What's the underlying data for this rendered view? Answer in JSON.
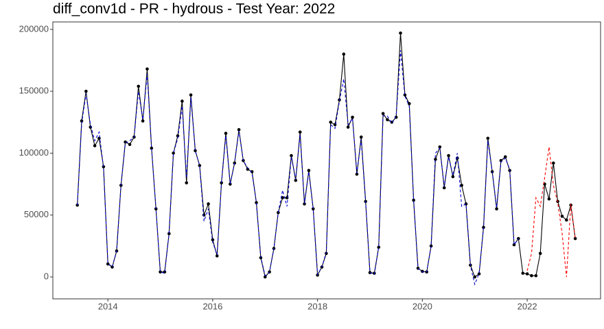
{
  "chart_data": {
    "type": "line",
    "title": "diff_conv1d - PR - hydrous - Test Year: 2022",
    "x": [
      2013.417,
      2013.5,
      2013.583,
      2013.667,
      2013.75,
      2013.833,
      2013.917,
      2014,
      2014.083,
      2014.167,
      2014.25,
      2014.333,
      2014.417,
      2014.5,
      2014.583,
      2014.667,
      2014.75,
      2014.833,
      2014.917,
      2015,
      2015.083,
      2015.167,
      2015.25,
      2015.333,
      2015.417,
      2015.5,
      2015.583,
      2015.667,
      2015.75,
      2015.833,
      2015.917,
      2016,
      2016.083,
      2016.167,
      2016.25,
      2016.333,
      2016.417,
      2016.5,
      2016.583,
      2016.667,
      2016.75,
      2016.833,
      2016.917,
      2017,
      2017.083,
      2017.167,
      2017.25,
      2017.333,
      2017.417,
      2017.5,
      2017.583,
      2017.667,
      2017.75,
      2017.833,
      2017.917,
      2018,
      2018.083,
      2018.167,
      2018.25,
      2018.333,
      2018.417,
      2018.5,
      2018.583,
      2018.667,
      2018.75,
      2018.833,
      2018.917,
      2019,
      2019.083,
      2019.167,
      2019.25,
      2019.333,
      2019.417,
      2019.5,
      2019.583,
      2019.667,
      2019.75,
      2019.833,
      2019.917,
      2020,
      2020.083,
      2020.167,
      2020.25,
      2020.333,
      2020.417,
      2020.5,
      2020.583,
      2020.667,
      2020.75,
      2020.833,
      2020.917,
      2021,
      2021.083,
      2021.167,
      2021.25,
      2021.333,
      2021.417,
      2021.5,
      2021.583,
      2021.667,
      2021.75,
      2021.833,
      2021.917,
      2022,
      2022.083,
      2022.167,
      2022.25,
      2022.333,
      2022.417,
      2022.5,
      2022.583,
      2022.667,
      2022.75,
      2022.833,
      2022.917
    ],
    "series": [
      {
        "color": "#000000",
        "dash": false,
        "points": true,
        "values": [
          58000,
          126000,
          150000,
          121000,
          106000,
          112000,
          89000,
          10500,
          8000,
          21000,
          74000,
          109000,
          107000,
          113000,
          154000,
          126000,
          168000,
          104000,
          55000,
          4000,
          4000,
          35000,
          100000,
          114000,
          142000,
          76000,
          147000,
          102000,
          90000,
          50000,
          59000,
          30000,
          17000,
          76000,
          116000,
          75000,
          92000,
          119000,
          94000,
          87000,
          85000,
          60000,
          15500,
          0,
          4000,
          23000,
          52000,
          64000,
          64000,
          98000,
          78000,
          117000,
          59000,
          86000,
          55000,
          1500,
          8000,
          19000,
          125000,
          123000,
          143000,
          180000,
          121000,
          129000,
          83000,
          113000,
          61000,
          3500,
          3000,
          24000,
          132000,
          127000,
          125000,
          129000,
          197000,
          147000,
          140000,
          62000,
          7000,
          4500,
          4000,
          25000,
          95000,
          105000,
          72000,
          98000,
          81000,
          96000,
          74000,
          59000,
          9500,
          0,
          2500,
          40000,
          112000,
          85000,
          55000,
          94000,
          97000,
          86000,
          26000,
          31000,
          3000,
          2500,
          1000,
          1000,
          19000,
          75000,
          63000,
          92000,
          61000,
          49000,
          46000,
          58000,
          31000
        ]
      },
      {
        "color": "#0000cd",
        "dash": true,
        "points": false,
        "values": [
          58000,
          124000,
          148000,
          123000,
          110000,
          117000,
          88000,
          11000,
          8000,
          21000,
          74000,
          108000,
          110000,
          113000,
          150000,
          127000,
          164000,
          104000,
          55000,
          4000,
          3000,
          35000,
          100000,
          112000,
          138000,
          80000,
          145000,
          102000,
          90000,
          45000,
          55000,
          28000,
          18000,
          76000,
          114000,
          75000,
          92000,
          118000,
          94000,
          88000,
          84000,
          60000,
          16000,
          1000,
          4000,
          23000,
          52000,
          70000,
          57000,
          97000,
          79000,
          115000,
          59000,
          85000,
          55000,
          2000,
          8000,
          20000,
          123000,
          120000,
          142000,
          160000,
          123000,
          128000,
          84000,
          111000,
          61000,
          3500,
          2000,
          24000,
          130000,
          130000,
          124000,
          130000,
          183000,
          146000,
          138000,
          62000,
          7000,
          4000,
          4000,
          25000,
          100000,
          104000,
          73000,
          97000,
          82000,
          100000,
          57000,
          59000,
          9000,
          -6000,
          3000,
          40000,
          110000,
          85000,
          56000,
          93000,
          96000,
          87000,
          26000,
          31000,
          null,
          null,
          null,
          null,
          null,
          null,
          null,
          null,
          null,
          null,
          null,
          null,
          null
        ]
      },
      {
        "color": "#ff0000",
        "dash": true,
        "points": false,
        "x": [
          2022,
          2022.083,
          2022.167,
          2022.25,
          2022.333,
          2022.417,
          2022.5,
          2022.583,
          2022.667,
          2022.75,
          2022.833,
          2022.917
        ],
        "values": [
          5000,
          19000,
          64000,
          57000,
          80000,
          105000,
          74000,
          60000,
          35000,
          0,
          59000,
          31000
        ]
      }
    ],
    "xlim": [
      2012.95,
      2023.4
    ],
    "xticks": [
      2014,
      2016,
      2018,
      2020,
      2022
    ],
    "ylim": [
      -17700,
      206000
    ],
    "yticks": [
      0,
      50000,
      100000,
      150000,
      200000
    ],
    "grid": false
  }
}
